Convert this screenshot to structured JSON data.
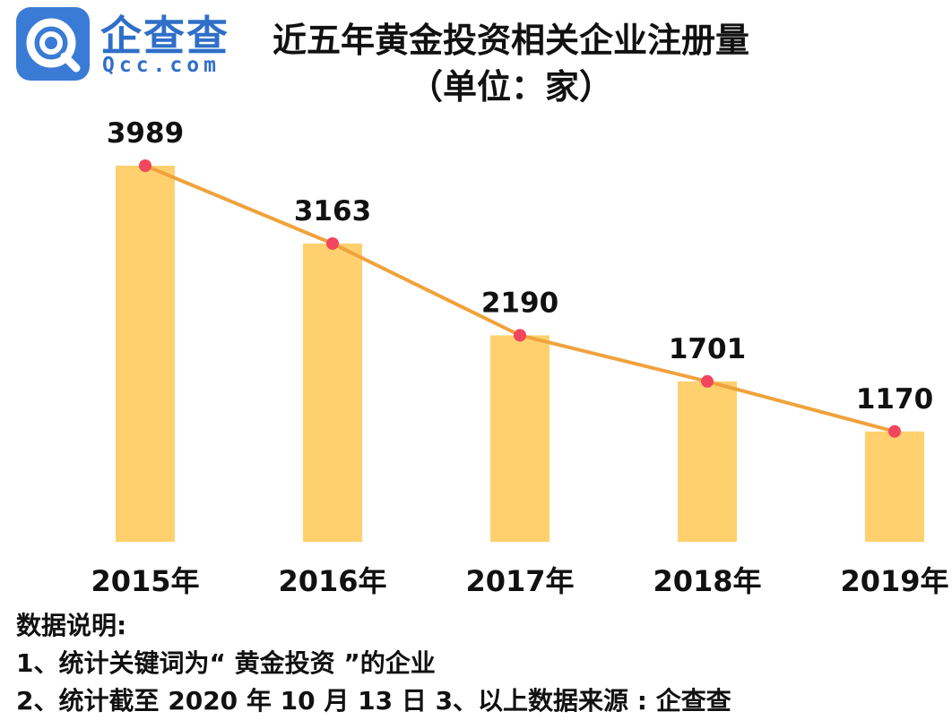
{
  "brand": {
    "name_cn": "企查查",
    "name_en": "Qcc.com",
    "icon": "qcc-logo-icon",
    "color": "#2f6fc8"
  },
  "header": {
    "title": "近五年黄金投资相关企业注册量",
    "subtitle": "（单位：家）"
  },
  "chart_data": {
    "type": "bar",
    "categories": [
      "2015年",
      "2016年",
      "2017年",
      "2018年",
      "2019年"
    ],
    "values": [
      3989,
      3163,
      2190,
      1701,
      1170
    ],
    "overlay": "line",
    "bar_color": "#ffd06e",
    "line_color": "#f0a23c",
    "point_color": "#f2455e",
    "ylim": [
      0,
      4000
    ],
    "grid": false,
    "data_labels": true
  },
  "notes": {
    "heading": "数据说明:",
    "line1": "1、统计关键词为“ 黄金投资 ”的企业",
    "line2": "2、统计截至 2020 年 10 月 13 日  3、以上数据来源 : 企查查"
  }
}
